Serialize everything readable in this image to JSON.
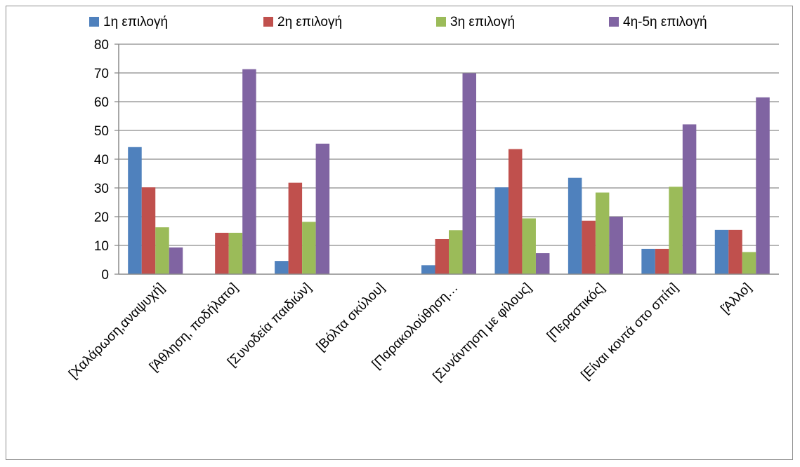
{
  "chart_data": {
    "type": "bar",
    "categories": [
      "[Χαλάρωση,αναψυχή]",
      "[Άθληση, ποδήλατο]",
      "[Συνοδεία παιδιών]",
      "[Βόλτα σκύλου]",
      "[Παρακολούθηση…",
      "[Συνάντηση με φίλους]",
      "[Περαστικός]",
      "[Είναι κοντά στο σπίτι]",
      "[Άλλο]"
    ],
    "series": [
      {
        "name": "1η επιλογή",
        "color": "#4f81bd",
        "values": [
          44.2,
          0,
          4.6,
          0,
          3.1,
          30.2,
          33.5,
          8.8,
          15.4
        ]
      },
      {
        "name": "2η επιλογή",
        "color": "#c0504d",
        "values": [
          30.2,
          14.4,
          31.8,
          0,
          12.2,
          43.5,
          18.6,
          8.8,
          15.4
        ]
      },
      {
        "name": "3η επιλογή",
        "color": "#9bbb59",
        "values": [
          16.3,
          14.4,
          18.2,
          0,
          15.3,
          19.4,
          28.4,
          30.4,
          7.7
        ]
      },
      {
        "name": "4η-5η επιλογή",
        "color": "#8064a2",
        "values": [
          9.3,
          71.3,
          45.4,
          0,
          69.9,
          7.3,
          20.0,
          52.1,
          61.5
        ]
      }
    ],
    "ylim": [
      0,
      80
    ],
    "yticks": [
      "0",
      "10",
      "20",
      "30",
      "40",
      "50",
      "60",
      "70",
      "80"
    ],
    "grid": true,
    "legend_position": "top"
  }
}
